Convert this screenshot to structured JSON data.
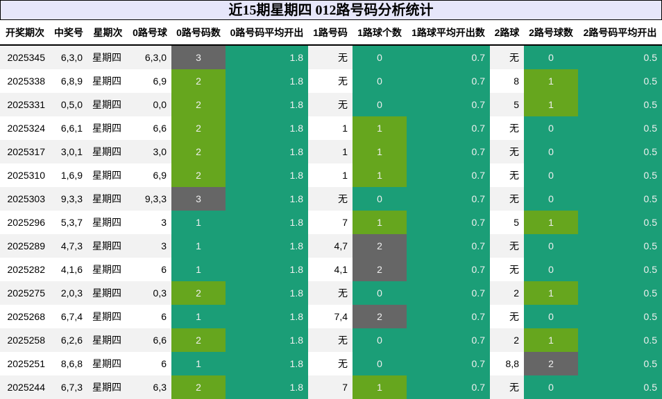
{
  "title": "近15期星期四 012路号码分析统计",
  "colors": {
    "teal": "#1b9e77",
    "green": "#66a61e",
    "gray": "#666666",
    "header_bg": "#e6e6fa"
  },
  "headers": [
    "开奖期次",
    "中奖号",
    "星期次",
    "0路号球",
    "0路号码数",
    "0路号码平均开出",
    "1路号码",
    "1路球个数",
    "1路球平均开出数",
    "2路球",
    "2路号球数",
    "2路号码平均开出"
  ],
  "rows": [
    [
      "2025345",
      "6,3,0",
      "星期四",
      "6,3,0",
      "3",
      "1.8",
      "无",
      "0",
      "0.7",
      "无",
      "0",
      "0.5"
    ],
    [
      "2025338",
      "6,8,9",
      "星期四",
      "6,9",
      "2",
      "1.8",
      "无",
      "0",
      "0.7",
      "8",
      "1",
      "0.5"
    ],
    [
      "2025331",
      "0,5,0",
      "星期四",
      "0,0",
      "2",
      "1.8",
      "无",
      "0",
      "0.7",
      "5",
      "1",
      "0.5"
    ],
    [
      "2025324",
      "6,6,1",
      "星期四",
      "6,6",
      "2",
      "1.8",
      "1",
      "1",
      "0.7",
      "无",
      "0",
      "0.5"
    ],
    [
      "2025317",
      "3,0,1",
      "星期四",
      "3,0",
      "2",
      "1.8",
      "1",
      "1",
      "0.7",
      "无",
      "0",
      "0.5"
    ],
    [
      "2025310",
      "1,6,9",
      "星期四",
      "6,9",
      "2",
      "1.8",
      "1",
      "1",
      "0.7",
      "无",
      "0",
      "0.5"
    ],
    [
      "2025303",
      "9,3,3",
      "星期四",
      "9,3,3",
      "3",
      "1.8",
      "无",
      "0",
      "0.7",
      "无",
      "0",
      "0.5"
    ],
    [
      "2025296",
      "5,3,7",
      "星期四",
      "3",
      "1",
      "1.8",
      "7",
      "1",
      "0.7",
      "5",
      "1",
      "0.5"
    ],
    [
      "2025289",
      "4,7,3",
      "星期四",
      "3",
      "1",
      "1.8",
      "4,7",
      "2",
      "0.7",
      "无",
      "0",
      "0.5"
    ],
    [
      "2025282",
      "4,1,6",
      "星期四",
      "6",
      "1",
      "1.8",
      "4,1",
      "2",
      "0.7",
      "无",
      "0",
      "0.5"
    ],
    [
      "2025275",
      "2,0,3",
      "星期四",
      "0,3",
      "2",
      "1.8",
      "无",
      "0",
      "0.7",
      "2",
      "1",
      "0.5"
    ],
    [
      "2025268",
      "6,7,4",
      "星期四",
      "6",
      "1",
      "1.8",
      "7,4",
      "2",
      "0.7",
      "无",
      "0",
      "0.5"
    ],
    [
      "2025258",
      "6,2,6",
      "星期四",
      "6,6",
      "2",
      "1.8",
      "无",
      "0",
      "0.7",
      "2",
      "1",
      "0.5"
    ],
    [
      "2025251",
      "8,6,8",
      "星期四",
      "6",
      "1",
      "1.8",
      "无",
      "0",
      "0.7",
      "8,8",
      "2",
      "0.5"
    ],
    [
      "2025244",
      "6,7,3",
      "星期四",
      "6,3",
      "2",
      "1.8",
      "7",
      "1",
      "0.7",
      "无",
      "0",
      "0.5"
    ]
  ]
}
